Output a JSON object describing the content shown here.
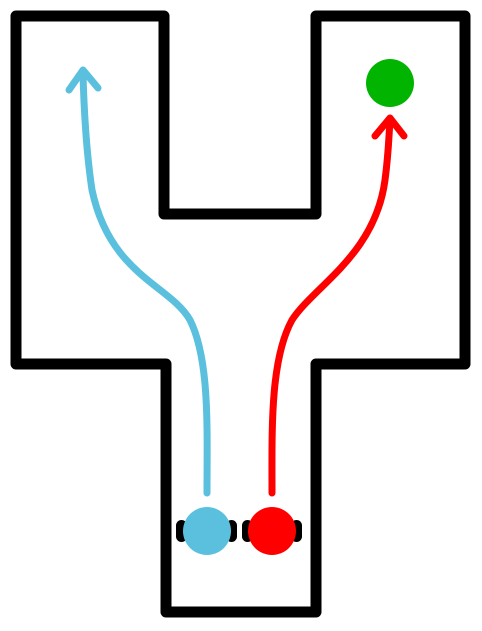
{
  "colors": {
    "background": "#ffffff",
    "wall": "#000000",
    "robot_blue": "#5bc0de",
    "robot_red": "#ff0000",
    "goal": "#00b400"
  },
  "entities": {
    "robots": [
      {
        "name": "blue-robot",
        "color_key": "robot_blue"
      },
      {
        "name": "red-robot",
        "color_key": "robot_red"
      }
    ],
    "goal": {
      "name": "green-goal",
      "color_key": "goal"
    }
  }
}
